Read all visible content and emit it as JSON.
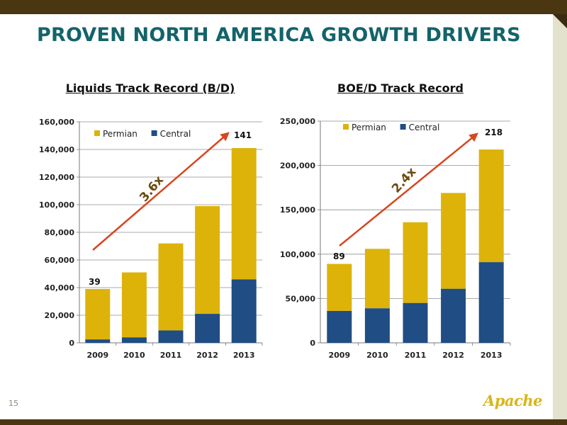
{
  "slide": {
    "title": "PROVEN NORTH AMERICA GROWTH DRIVERS",
    "page_number": "15",
    "logo_text": "Apache",
    "colors": {
      "title": "#13636b",
      "band": "#4a3712",
      "permian": "#ddb30a",
      "central": "#1f4d84",
      "arrow": "#d6471e"
    }
  },
  "chart_data": [
    {
      "type": "bar",
      "stacked": true,
      "title": "Liquids Track Record (B/D)",
      "categories": [
        "2009",
        "2010",
        "2011",
        "2012",
        "2013"
      ],
      "series": [
        {
          "name": "Central",
          "color": "#1f4d84",
          "values": [
            2500,
            4000,
            9000,
            21000,
            46000
          ]
        },
        {
          "name": "Permian",
          "color": "#ddb30a",
          "values": [
            36500,
            47000,
            63000,
            78000,
            95000
          ]
        }
      ],
      "ylim": [
        0,
        160000
      ],
      "yticks": [
        "0",
        "20,000",
        "40,000",
        "60,000",
        "80,000",
        "100,000",
        "120,000",
        "140,000",
        "160,000"
      ],
      "legend": [
        "Permian",
        "Central"
      ],
      "legend_position": "top-left",
      "grid": true,
      "annotations": {
        "start_label": "39",
        "end_label": "141",
        "growth": "3.6x"
      }
    },
    {
      "type": "bar",
      "stacked": true,
      "title": "BOE/D Track Record",
      "categories": [
        "2009",
        "2010",
        "2011",
        "2012",
        "2013"
      ],
      "series": [
        {
          "name": "Central",
          "color": "#1f4d84",
          "values": [
            36000,
            39000,
            45000,
            61000,
            91000
          ]
        },
        {
          "name": "Permian",
          "color": "#ddb30a",
          "values": [
            53000,
            67000,
            91000,
            108000,
            127000
          ]
        }
      ],
      "ylim": [
        0,
        250000
      ],
      "yticks": [
        "0",
        "50,000",
        "100,000",
        "150,000",
        "200,000",
        "250,000"
      ],
      "legend": [
        "Permian",
        "Central"
      ],
      "legend_position": "top-left",
      "grid": true,
      "annotations": {
        "start_label": "89",
        "end_label": "218",
        "growth": "2.4x"
      }
    }
  ]
}
